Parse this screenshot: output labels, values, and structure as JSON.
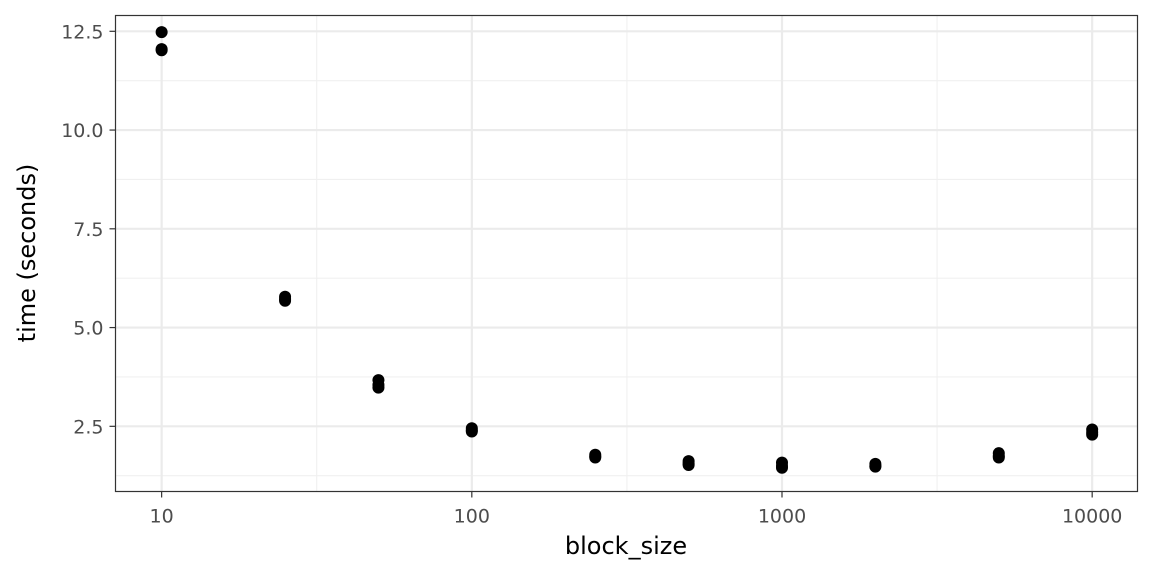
{
  "chart_data": {
    "type": "scatter",
    "title": "",
    "xlabel": "block_size",
    "ylabel": "time (seconds)",
    "x_scale": "log10",
    "xlim": [
      7.1,
      14000
    ],
    "ylim": [
      0.85,
      12.9
    ],
    "x_ticks": [
      {
        "value": 10,
        "label": "10"
      },
      {
        "value": 100,
        "label": "100"
      },
      {
        "value": 1000,
        "label": "1000"
      },
      {
        "value": 10000,
        "label": "10000"
      }
    ],
    "x_minor_ticks": [
      3.1623,
      31.623,
      316.23,
      3162.3
    ],
    "y_ticks": [
      {
        "value": 2.5,
        "label": "2.5"
      },
      {
        "value": 5.0,
        "label": "5.0"
      },
      {
        "value": 7.5,
        "label": "7.5"
      },
      {
        "value": 10.0,
        "label": "10.0"
      },
      {
        "value": 12.5,
        "label": "12.5"
      }
    ],
    "y_minor_ticks": [
      1.25,
      3.75,
      6.25,
      8.75,
      11.25
    ],
    "grid": true,
    "point_color": "#000000",
    "points": [
      {
        "x": 10,
        "y": 12.48
      },
      {
        "x": 10,
        "y": 12.05
      },
      {
        "x": 10,
        "y": 12.02
      },
      {
        "x": 25,
        "y": 5.78
      },
      {
        "x": 25,
        "y": 5.72
      },
      {
        "x": 25,
        "y": 5.68
      },
      {
        "x": 50,
        "y": 3.67
      },
      {
        "x": 50,
        "y": 3.55
      },
      {
        "x": 50,
        "y": 3.48
      },
      {
        "x": 100,
        "y": 2.45
      },
      {
        "x": 100,
        "y": 2.4
      },
      {
        "x": 100,
        "y": 2.37
      },
      {
        "x": 250,
        "y": 1.78
      },
      {
        "x": 250,
        "y": 1.74
      },
      {
        "x": 250,
        "y": 1.71
      },
      {
        "x": 500,
        "y": 1.62
      },
      {
        "x": 500,
        "y": 1.56
      },
      {
        "x": 500,
        "y": 1.52
      },
      {
        "x": 1000,
        "y": 1.58
      },
      {
        "x": 1000,
        "y": 1.5
      },
      {
        "x": 1000,
        "y": 1.45
      },
      {
        "x": 2000,
        "y": 1.55
      },
      {
        "x": 2000,
        "y": 1.5
      },
      {
        "x": 2000,
        "y": 1.48
      },
      {
        "x": 5000,
        "y": 1.82
      },
      {
        "x": 5000,
        "y": 1.75
      },
      {
        "x": 5000,
        "y": 1.71
      },
      {
        "x": 10000,
        "y": 2.42
      },
      {
        "x": 10000,
        "y": 2.35
      },
      {
        "x": 10000,
        "y": 2.29
      }
    ]
  }
}
